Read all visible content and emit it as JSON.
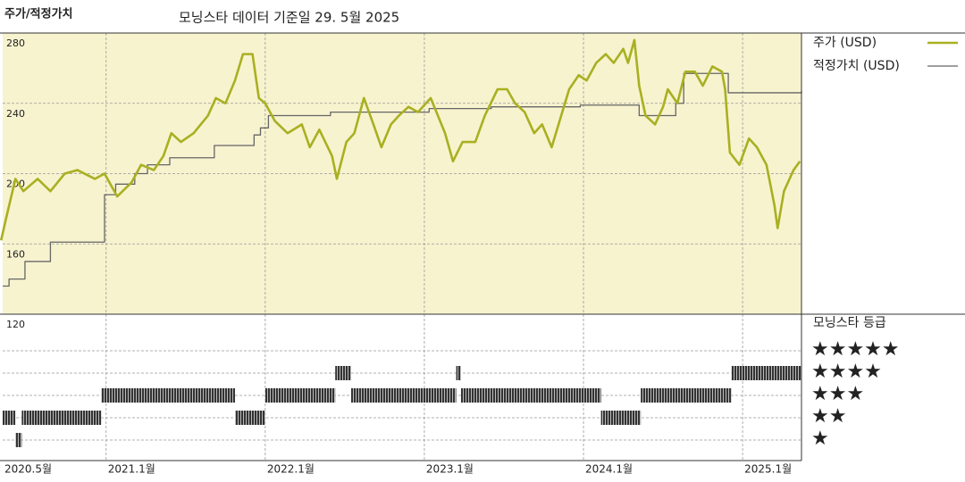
{
  "title": "주가/적정가치",
  "subtitle": "모닝스타 데이터 기준일 29. 5월 2025",
  "chart_data": {
    "type": "line",
    "xlim": [
      2020.35,
      2025.37
    ],
    "xticks": [
      {
        "value": 2020.35,
        "label": "2020.5월"
      },
      {
        "value": 2021.0,
        "label": "2021.1월"
      },
      {
        "value": 2022.0,
        "label": "2022.1월"
      },
      {
        "value": 2023.0,
        "label": "2023.1월"
      },
      {
        "value": 2024.0,
        "label": "2024.1월"
      },
      {
        "value": 2025.0,
        "label": "2025.1월"
      }
    ],
    "ylim": [
      120,
      280
    ],
    "yticks": [
      120,
      160,
      200,
      240,
      280
    ],
    "grid": true,
    "background": "#f7f3cf",
    "series": [
      {
        "name": "주가 (USD)",
        "color": "#a9b021",
        "x": [
          2020.34,
          2020.37,
          2020.43,
          2020.48,
          2020.57,
          2020.65,
          2020.74,
          2020.82,
          2020.93,
          2020.99,
          2021.07,
          2021.16,
          2021.22,
          2021.3,
          2021.36,
          2021.41,
          2021.47,
          2021.55,
          2021.64,
          2021.69,
          2021.75,
          2021.81,
          2021.86,
          2021.92,
          2021.96,
          2022.0,
          2022.06,
          2022.14,
          2022.23,
          2022.28,
          2022.34,
          2022.42,
          2022.45,
          2022.51,
          2022.56,
          2022.62,
          2022.68,
          2022.73,
          2022.79,
          2022.84,
          2022.9,
          2022.96,
          2023.04,
          2023.13,
          2023.18,
          2023.24,
          2023.32,
          2023.38,
          2023.46,
          2023.52,
          2023.57,
          2023.63,
          2023.69,
          2023.74,
          2023.8,
          2023.86,
          2023.91,
          2023.97,
          2024.02,
          2024.08,
          2024.14,
          2024.19,
          2024.25,
          2024.28,
          2024.32,
          2024.35,
          2024.39,
          2024.45,
          2024.5,
          2024.53,
          2024.59,
          2024.64,
          2024.7,
          2024.75,
          2024.81,
          2024.87,
          2024.89,
          2024.92,
          2024.98,
          2025.04,
          2025.09,
          2025.15,
          2025.2,
          2025.22,
          2025.26,
          2025.32,
          2025.36
        ],
        "values": [
          162,
          174,
          197,
          190,
          197,
          190,
          200,
          202,
          197,
          200,
          187,
          195,
          205,
          202,
          210,
          223,
          218,
          223,
          233,
          243,
          240,
          253,
          268,
          268,
          243,
          240,
          230,
          223,
          228,
          215,
          225,
          210,
          197,
          218,
          223,
          243,
          228,
          215,
          228,
          233,
          238,
          235,
          243,
          223,
          207,
          218,
          218,
          233,
          248,
          248,
          240,
          235,
          223,
          228,
          215,
          233,
          248,
          256,
          253,
          263,
          268,
          263,
          271,
          263,
          276,
          250,
          233,
          228,
          238,
          248,
          240,
          258,
          258,
          250,
          261,
          258,
          248,
          212,
          205,
          220,
          215,
          205,
          182,
          169,
          190,
          202,
          207
        ]
      },
      {
        "name": "적정가치 (USD)",
        "color": "#666666",
        "step": true,
        "x": [
          2020.35,
          2020.39,
          2020.49,
          2020.65,
          2020.99,
          2021.06,
          2021.18,
          2021.26,
          2021.4,
          2021.68,
          2021.93,
          2021.97,
          2022.02,
          2022.41,
          2023.03,
          2023.42,
          2023.98,
          2024.35,
          2024.58,
          2024.63,
          2024.91,
          2025.37
        ],
        "values": [
          136,
          140,
          150,
          161,
          188,
          194,
          200,
          205,
          209,
          216,
          222,
          226,
          233,
          235,
          237,
          238,
          239,
          233,
          240,
          257,
          246,
          247
        ]
      }
    ],
    "rating": {
      "title": "모닝스타 등급",
      "levels": [
        5,
        4,
        3,
        2,
        1
      ],
      "labels": [
        "★★★★★",
        "★★★★",
        "★★★",
        "★★",
        "★"
      ],
      "start": [
        2020.35,
        2020.43,
        2020.47,
        2020.97,
        2021.81,
        2022.0,
        2022.44,
        2022.54,
        2023.2,
        2023.23,
        2024.11,
        2024.36,
        2024.93
      ],
      "end": [
        2020.43,
        2020.47,
        2020.97,
        2021.81,
        2022.0,
        2022.44,
        2022.54,
        2023.2,
        2023.23,
        2024.11,
        2024.36,
        2024.93,
        2025.37
      ],
      "stars": [
        2,
        1,
        2,
        3,
        2,
        3,
        4,
        3,
        4,
        3,
        2,
        3,
        4
      ]
    }
  }
}
